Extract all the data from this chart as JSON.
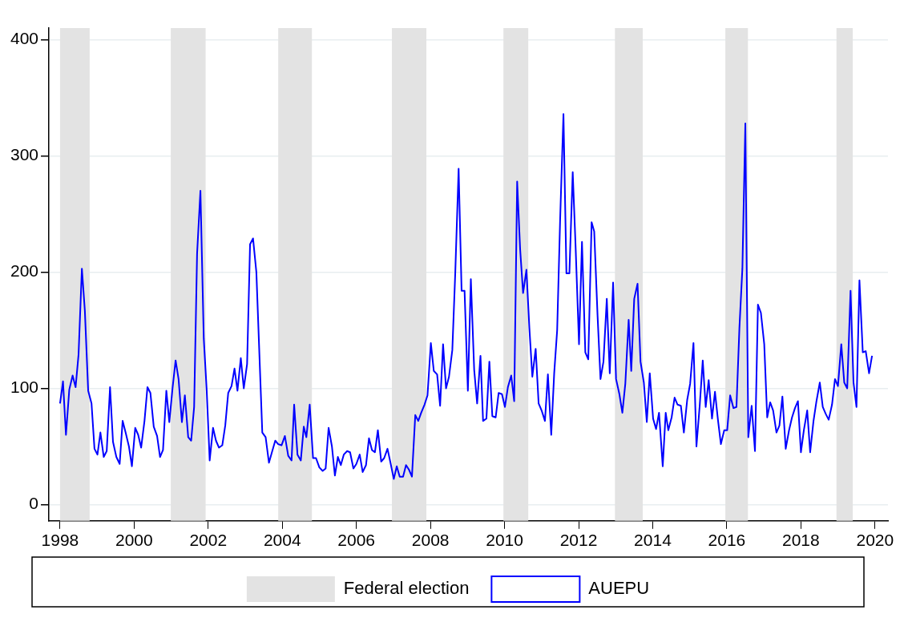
{
  "chart_data": {
    "type": "line",
    "x": [
      1998.0,
      1998.08,
      1998.16,
      1998.25,
      1998.34,
      1998.42,
      1998.5,
      1998.59,
      1998.67,
      1998.76,
      1998.85,
      1998.93,
      1999.01,
      1999.09,
      1999.18,
      1999.26,
      1999.35,
      1999.43,
      1999.52,
      1999.61,
      1999.69,
      1999.77,
      1999.86,
      1999.94,
      2000.03,
      2000.11,
      2000.19,
      2000.28,
      2000.36,
      2000.44,
      2000.53,
      2000.62,
      2000.7,
      2000.78,
      2000.87,
      2000.95,
      2001.04,
      2001.12,
      2001.2,
      2001.29,
      2001.37,
      2001.46,
      2001.54,
      2001.62,
      2001.7,
      2001.79,
      2001.88,
      2001.96,
      2002.04,
      2002.13,
      2002.21,
      2002.29,
      2002.38,
      2002.46,
      2002.54,
      2002.63,
      2002.71,
      2002.79,
      2002.88,
      2002.96,
      2003.05,
      2003.13,
      2003.21,
      2003.3,
      2003.46,
      2003.55,
      2003.64,
      2003.72,
      2003.81,
      2003.89,
      2003.98,
      2004.07,
      2004.16,
      2004.25,
      2004.32,
      2004.41,
      2004.5,
      2004.58,
      2004.65,
      2004.74,
      2004.83,
      2004.91,
      2005.0,
      2005.09,
      2005.17,
      2005.25,
      2005.34,
      2005.42,
      2005.5,
      2005.58,
      2005.66,
      2005.75,
      2005.83,
      2005.92,
      2006.0,
      2006.09,
      2006.17,
      2006.26,
      2006.34,
      2006.42,
      2006.5,
      2006.58,
      2006.67,
      2006.75,
      2006.84,
      2006.92,
      2007.01,
      2007.09,
      2007.17,
      2007.26,
      2007.34,
      2007.42,
      2007.5,
      2007.59,
      2007.67,
      2007.75,
      2007.84,
      2007.92,
      2008.01,
      2008.09,
      2008.18,
      2008.26,
      2008.34,
      2008.42,
      2008.5,
      2008.59,
      2008.67,
      2008.76,
      2008.84,
      2008.92,
      2009.01,
      2009.09,
      2009.18,
      2009.26,
      2009.35,
      2009.42,
      2009.51,
      2009.59,
      2009.67,
      2009.76,
      2009.84,
      2009.93,
      2010.01,
      2010.09,
      2010.18,
      2010.26,
      2010.34,
      2010.42,
      2010.5,
      2010.59,
      2010.67,
      2010.75,
      2010.84,
      2010.92,
      2011.0,
      2011.09,
      2011.17,
      2011.26,
      2011.34,
      2011.42,
      2011.5,
      2011.59,
      2011.67,
      2011.75,
      2011.84,
      2011.92,
      2012.01,
      2012.09,
      2012.18,
      2012.26,
      2012.35,
      2012.42,
      2012.51,
      2012.59,
      2012.67,
      2012.76,
      2012.84,
      2012.93,
      2013.01,
      2013.1,
      2013.18,
      2013.26,
      2013.35,
      2013.42,
      2013.5,
      2013.59,
      2013.67,
      2013.76,
      2013.84,
      2013.92,
      2014.01,
      2014.09,
      2014.17,
      2014.27,
      2014.35,
      2014.42,
      2014.51,
      2014.59,
      2014.67,
      2014.76,
      2014.84,
      2014.93,
      2015.01,
      2015.1,
      2015.18,
      2015.27,
      2015.35,
      2015.43,
      2015.51,
      2015.6,
      2015.68,
      2015.76,
      2015.84,
      2015.93,
      2016.01,
      2016.09,
      2016.18,
      2016.26,
      2016.34,
      2016.42,
      2016.5,
      2016.58,
      2016.67,
      2016.76,
      2016.84,
      2016.92,
      2017.01,
      2017.09,
      2017.17,
      2017.25,
      2017.34,
      2017.42,
      2017.5,
      2017.59,
      2017.68,
      2017.76,
      2017.84,
      2017.92,
      2018.0,
      2018.08,
      2018.17,
      2018.25,
      2018.34,
      2018.42,
      2018.51,
      2018.59,
      2018.67,
      2018.75,
      2018.84,
      2018.92,
      2019.0,
      2019.09,
      2019.17,
      2019.25,
      2019.34,
      2019.42,
      2019.5,
      2019.58,
      2019.67,
      2019.75,
      2019.84,
      2019.92
    ],
    "series": [
      {
        "name": "AUEPU",
        "color": "#0000ff",
        "values": [
          87,
          106,
          60,
          99,
          111,
          101,
          129,
          203,
          167,
          98,
          87,
          48,
          43,
          62,
          41,
          46,
          101,
          54,
          41,
          35,
          72,
          62,
          50,
          33,
          66,
          60,
          49,
          72,
          101,
          96,
          67,
          59,
          41,
          47,
          98,
          71,
          101,
          124,
          108,
          71,
          94,
          58,
          55,
          84,
          216,
          270,
          143,
          98,
          38,
          66,
          55,
          49,
          51,
          68,
          96,
          102,
          117,
          98,
          126,
          100,
          121,
          224,
          229,
          200,
          62,
          58,
          36,
          45,
          55,
          52,
          51,
          59,
          42,
          38,
          86,
          43,
          38,
          67,
          58,
          86,
          40,
          40,
          32,
          29,
          31,
          66,
          50,
          25,
          41,
          34,
          43,
          46,
          45,
          31,
          35,
          43,
          28,
          34,
          57,
          47,
          45,
          64,
          37,
          40,
          48,
          36,
          22,
          33,
          24,
          24,
          34,
          30,
          24,
          77,
          72,
          79,
          86,
          94,
          139,
          115,
          112,
          85,
          138,
          100,
          110,
          133,
          200,
          289,
          184,
          184,
          98,
          194,
          116,
          87,
          128,
          72,
          74,
          123,
          76,
          75,
          96,
          95,
          84,
          101,
          111,
          89,
          278,
          220,
          182,
          202,
          152,
          110,
          134,
          87,
          81,
          72,
          112,
          60,
          113,
          150,
          245,
          336,
          199,
          199,
          286,
          220,
          138,
          226,
          131,
          125,
          243,
          235,
          163,
          108,
          123,
          177,
          113,
          191,
          108,
          95,
          79,
          104,
          159,
          115,
          177,
          190,
          123,
          105,
          71,
          113,
          74,
          65,
          79,
          33,
          79,
          64,
          75,
          92,
          86,
          85,
          62,
          90,
          104,
          139,
          50,
          86,
          124,
          84,
          107,
          74,
          97,
          73,
          52,
          64,
          64,
          94,
          83,
          84,
          152,
          203,
          328,
          58,
          85,
          46,
          172,
          165,
          138,
          75,
          88,
          81,
          62,
          68,
          93,
          48,
          64,
          75,
          83,
          89,
          45,
          64,
          81,
          45,
          72,
          89,
          105,
          84,
          78,
          73,
          86,
          108,
          102,
          138,
          105,
          100,
          184,
          105,
          84,
          193,
          131,
          132,
          113,
          128
        ]
      }
    ],
    "bands": [
      {
        "axis": "x",
        "from": 1998.0,
        "to": 1998.8,
        "label": "Federal election",
        "color": "#e3e3e3"
      },
      {
        "axis": "x",
        "from": 2000.99,
        "to": 2001.93,
        "color": "#e3e3e3"
      },
      {
        "axis": "x",
        "from": 2003.89,
        "to": 2004.8,
        "color": "#e3e3e3"
      },
      {
        "axis": "x",
        "from": 2006.96,
        "to": 2007.89,
        "color": "#e3e3e3"
      },
      {
        "axis": "x",
        "from": 2009.97,
        "to": 2010.64,
        "color": "#e3e3e3"
      },
      {
        "axis": "x",
        "from": 2012.98,
        "to": 2013.73,
        "color": "#e3e3e3"
      },
      {
        "axis": "x",
        "from": 2015.96,
        "to": 2016.57,
        "color": "#e3e3e3"
      },
      {
        "axis": "x",
        "from": 2018.96,
        "to": 2019.4,
        "color": "#e3e3e3"
      }
    ],
    "xlim": [
      1997.7,
      2020.35
    ],
    "xticks": [
      1998,
      2000,
      2002,
      2004,
      2006,
      2008,
      2010,
      2012,
      2014,
      2016,
      2018,
      2020
    ],
    "ylim": [
      -14,
      410
    ],
    "yticks": [
      0,
      100,
      200,
      300,
      400
    ],
    "grid": "y",
    "legend": "bottom",
    "marker": "none",
    "line_style": "solid"
  }
}
